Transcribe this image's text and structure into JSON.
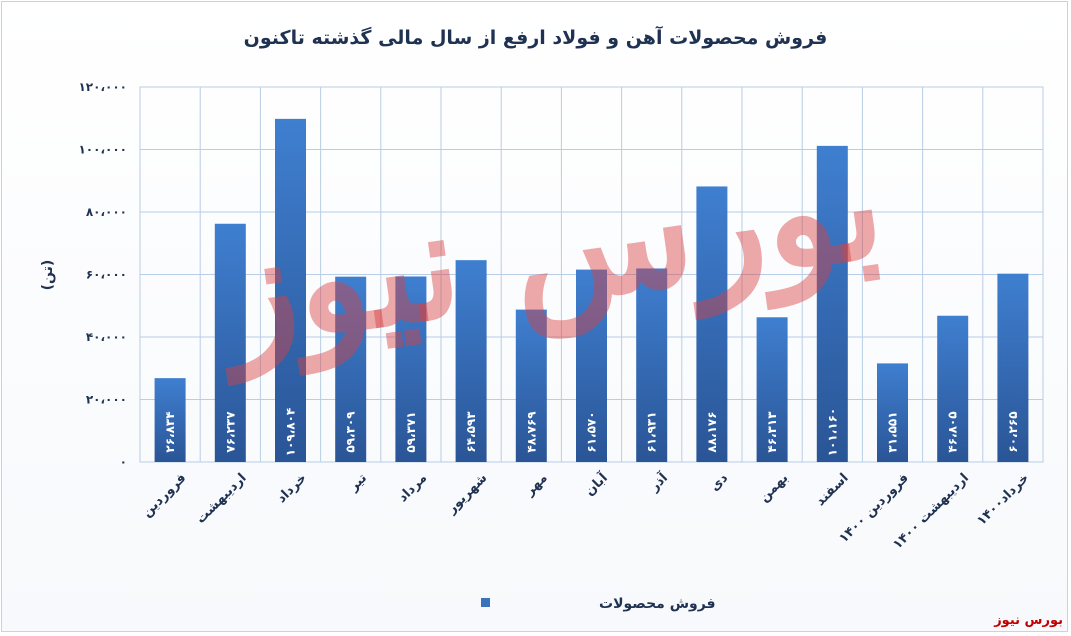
{
  "chart_data": {
    "type": "bar",
    "title": "فروش محصولات آهن و فولاد ارفع از سال مالی گذشته تاکنون",
    "ylabel": "(تن)",
    "xlabel": "",
    "ylim": [
      0,
      120000
    ],
    "yticks": [
      "۰",
      "۲۰،۰۰۰",
      "۴۰،۰۰۰",
      "۶۰،۰۰۰",
      "۸۰،۰۰۰",
      "۱۰۰،۰۰۰",
      "۱۲۰،۰۰۰"
    ],
    "grid": true,
    "legend_position": "bottom",
    "categories": [
      "فروردین",
      "اردیبهشت",
      "خرداد",
      "تیر",
      "مرداد",
      "شهریور",
      "مهر",
      "آبان",
      "آذر",
      "دی",
      "بهمن",
      "اسفند",
      "فروردین ۱۴۰۰",
      "اردیبهشت ۱۴۰۰",
      "خرداد۱۴۰۰"
    ],
    "series": [
      {
        "name": "فروش محصولات",
        "color": "#3a73bd",
        "values": [
          26834,
          76237,
          109804,
          59309,
          59371,
          64593,
          48769,
          61570,
          61931,
          88176,
          46313,
          101160,
          31551,
          46805,
          60265
        ],
        "labels": [
          "۲۶،۸۳۴",
          "۷۶،۲۳۷",
          "۱۰۹،۸۰۴",
          "۵۹،۳۰۹",
          "۵۹،۳۷۱",
          "۶۴،۵۹۳",
          "۴۸،۷۶۹",
          "۶۱،۵۷۰",
          "۶۱،۹۳۱",
          "۸۸،۱۷۶",
          "۴۶،۳۱۳",
          "۱۰۱،۱۶۰",
          "۳۱،۵۵۱",
          "۴۶،۸۰۵",
          "۶۰،۲۶۵"
        ]
      }
    ]
  },
  "watermark": "بورس نیوز",
  "background_watermark": "بورس نیوز"
}
